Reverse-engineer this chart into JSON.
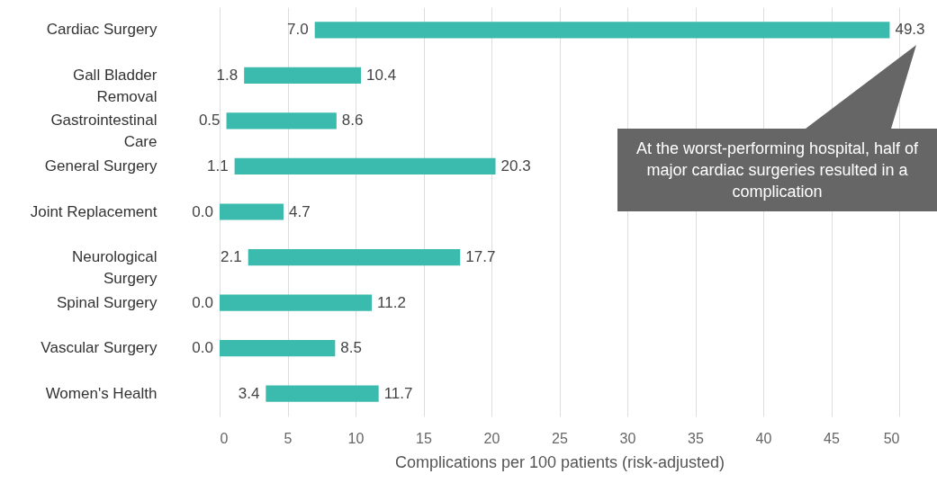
{
  "chart_data": {
    "type": "bar",
    "orientation": "horizontal",
    "categories": [
      "Cardiac Surgery",
      "Gall Bladder Removal",
      "Gastrointestinal Care",
      "General Surgery",
      "Joint Replacement",
      "Neurological Surgery",
      "Spinal Surgery",
      "Vascular Surgery",
      "Women's Health"
    ],
    "base": [
      7.0,
      1.8,
      0.5,
      1.1,
      0.0,
      2.1,
      0.0,
      0.0,
      3.4
    ],
    "values": [
      42.3,
      8.6,
      8.1,
      19.2,
      4.7,
      15.6,
      11.2,
      8.5,
      8.3
    ],
    "color": "#3bbbad",
    "xlabel": "Complications per 100 patients (risk-adjusted)",
    "xlim": [
      0,
      50
    ],
    "xticks": [
      0,
      5,
      10,
      15,
      20,
      25,
      30,
      35,
      40,
      45,
      50
    ],
    "grid": "x",
    "annotations": [
      {
        "text": "7.0",
        "x": 7.0,
        "y": "Cardiac Surgery"
      },
      {
        "text": "49.3",
        "x": 49.3,
        "y": "Cardiac Surgery"
      },
      {
        "text": "1.8",
        "x": 1.8,
        "y": "Gall Bladder Removal"
      },
      {
        "text": "10.4",
        "x": 10.4,
        "y": "Gall Bladder Removal"
      },
      {
        "text": "0.5",
        "x": 0.5,
        "y": "Gastrointestinal Care"
      },
      {
        "text": "8.6",
        "x": 8.6,
        "y": "Gastrointestinal Care"
      },
      {
        "text": "1.1",
        "x": 1.1,
        "y": "General Surgery"
      },
      {
        "text": "20.3",
        "x": 20.3,
        "y": "General Surgery"
      },
      {
        "text": "0.0",
        "x": 0.0,
        "y": "Joint Replacement"
      },
      {
        "text": "4.7",
        "x": 4.7,
        "y": "Joint Replacement"
      },
      {
        "text": "2.1",
        "x": 2.1,
        "y": "Neurological Surgery"
      },
      {
        "text": "17.7",
        "x": 17.7,
        "y": "Neurological Surgery"
      },
      {
        "text": "0.0",
        "x": 0.0,
        "y": "Spinal Surgery"
      },
      {
        "text": "11.2",
        "x": 11.2,
        "y": "Spinal Surgery"
      },
      {
        "text": "0.0",
        "x": 0.0,
        "y": "Vascular Surgery"
      },
      {
        "text": "8.5",
        "x": 8.5,
        "y": "Vascular Surgery"
      },
      {
        "text": "3.4",
        "x": 3.4,
        "y": "Women's Health"
      },
      {
        "text": "11.7",
        "x": 11.7,
        "y": "Women's Health"
      },
      "At the worst-performing hospital, half of major cardiac surgeries resulted in a complication"
    ]
  }
}
